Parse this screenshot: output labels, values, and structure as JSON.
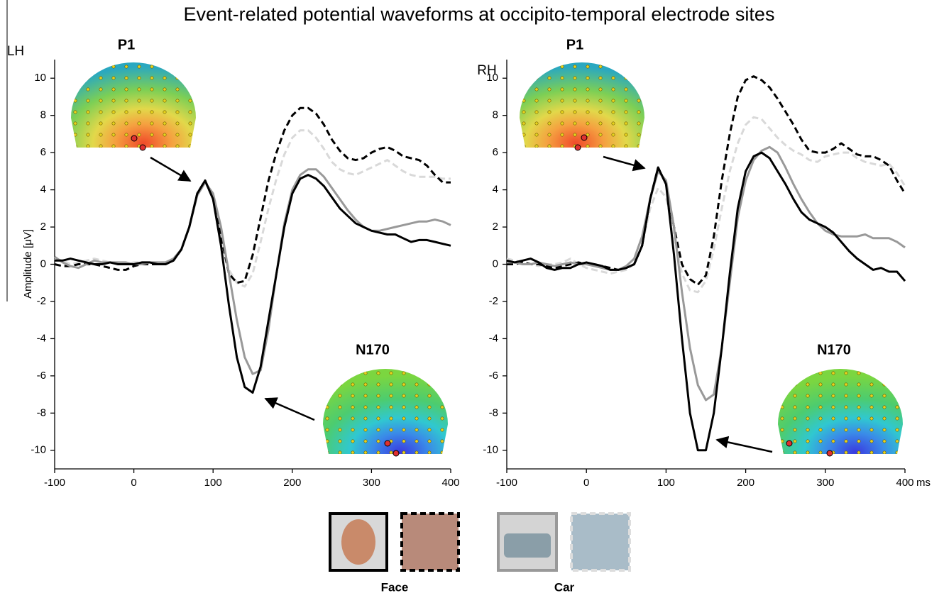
{
  "title": "Event-related potential waveforms at occipito-temporal electrode sites",
  "y_label": "Amplitude [μV]",
  "legend": [
    {
      "label": "Face"
    },
    {
      "label": "Car"
    }
  ],
  "chart_data": [
    {
      "type": "line",
      "panel_label": "LH",
      "annotations": [
        "P1",
        "N170"
      ],
      "x": [
        -100,
        -90,
        -80,
        -70,
        -60,
        -50,
        -40,
        -30,
        -20,
        -10,
        0,
        10,
        20,
        30,
        40,
        50,
        60,
        70,
        80,
        90,
        100,
        110,
        120,
        130,
        140,
        150,
        160,
        170,
        180,
        190,
        200,
        210,
        220,
        230,
        240,
        250,
        260,
        270,
        280,
        290,
        300,
        310,
        320,
        330,
        340,
        350,
        360,
        370,
        380,
        390,
        400
      ],
      "xlim": [
        -100,
        400
      ],
      "ylim": [
        -11,
        11
      ],
      "xticks": [
        -100,
        0,
        100,
        200,
        300,
        400
      ],
      "yticks": [
        -10,
        -8,
        -6,
        -4,
        -2,
        0,
        2,
        4,
        6,
        8,
        10
      ],
      "series": [
        {
          "color": "#000000",
          "dash": false,
          "values": [
            0.2,
            0.2,
            0.3,
            0.2,
            0.1,
            0,
            0,
            0.1,
            0,
            0,
            0,
            0.1,
            0.1,
            0,
            0,
            0.2,
            0.8,
            2,
            3.8,
            4.5,
            3.5,
            1,
            -2.2,
            -5,
            -6.6,
            -6.9,
            -5.5,
            -3,
            -0.5,
            2,
            3.8,
            4.6,
            4.8,
            4.6,
            4.2,
            3.6,
            3,
            2.6,
            2.2,
            2,
            1.8,
            1.7,
            1.6,
            1.6,
            1.4,
            1.2,
            1.3,
            1.3,
            1.2,
            1.1,
            1.0
          ]
        },
        {
          "color": "#999999",
          "dash": false,
          "values": [
            0.4,
            0.1,
            -0.1,
            -0.2,
            0,
            0.2,
            0.1,
            0.1,
            0.1,
            0.1,
            0,
            0,
            0.1,
            0.1,
            0.1,
            0.3,
            0.8,
            2,
            3.7,
            4.4,
            3.8,
            2,
            -0.5,
            -3,
            -5,
            -5.9,
            -5.7,
            -3.5,
            -0.5,
            2.2,
            4,
            4.8,
            5.1,
            5.1,
            4.7,
            4.1,
            3.5,
            2.9,
            2.4,
            2,
            1.8,
            1.8,
            1.9,
            2,
            2.1,
            2.2,
            2.3,
            2.3,
            2.4,
            2.3,
            2.1
          ]
        },
        {
          "color": "#000000",
          "dash": true,
          "values": [
            0,
            -0.1,
            -0.1,
            0,
            0,
            0,
            -0.1,
            -0.2,
            -0.3,
            -0.3,
            -0.1,
            0,
            0,
            0,
            0,
            0.2,
            0.8,
            2,
            3.8,
            4.5,
            3.5,
            1.5,
            -0.5,
            -1,
            -0.9,
            0.5,
            2.5,
            4.5,
            6,
            7.2,
            8,
            8.4,
            8.4,
            8.1,
            7.5,
            6.7,
            6.1,
            5.7,
            5.6,
            5.7,
            6,
            6.2,
            6.3,
            6.1,
            5.8,
            5.7,
            5.6,
            5.3,
            4.8,
            4.4,
            4.4
          ]
        },
        {
          "color": "#d9d9d9",
          "dash": true,
          "values": [
            0.3,
            0.2,
            0,
            0.1,
            0.2,
            0.3,
            0.2,
            0.1,
            0.1,
            0,
            0.1,
            0.1,
            0.1,
            0.1,
            0.1,
            0.3,
            0.8,
            2,
            3.7,
            4.4,
            3.6,
            1.6,
            -0.3,
            -1,
            -1.2,
            -0.5,
            1.2,
            3,
            4.6,
            5.9,
            6.8,
            7.2,
            7.2,
            6.8,
            6.2,
            5.5,
            5.1,
            4.9,
            4.8,
            5,
            5.2,
            5.4,
            5.6,
            5.3,
            5,
            4.8,
            4.7,
            4.7,
            4.7,
            4.6,
            4.6
          ]
        }
      ]
    },
    {
      "type": "line",
      "panel_label": "RH",
      "annotations": [
        "P1",
        "N170"
      ],
      "x_unit": "ms",
      "x": [
        -100,
        -90,
        -80,
        -70,
        -60,
        -50,
        -40,
        -30,
        -20,
        -10,
        0,
        10,
        20,
        30,
        40,
        50,
        60,
        70,
        80,
        90,
        100,
        110,
        120,
        130,
        140,
        150,
        160,
        170,
        180,
        190,
        200,
        210,
        220,
        230,
        240,
        250,
        260,
        270,
        280,
        290,
        300,
        310,
        320,
        330,
        340,
        350,
        360,
        370,
        380,
        390,
        400
      ],
      "xlim": [
        -100,
        400
      ],
      "ylim": [
        -11,
        11
      ],
      "xticks": [
        -100,
        0,
        100,
        200,
        300,
        400
      ],
      "yticks": [
        -10,
        -8,
        -6,
        -4,
        -2,
        0,
        2,
        4,
        6,
        8,
        10
      ],
      "series": [
        {
          "color": "#000000",
          "dash": false,
          "values": [
            0.2,
            0.1,
            0.2,
            0.3,
            0.1,
            -0.2,
            -0.3,
            -0.2,
            -0.2,
            0,
            0.1,
            0,
            -0.1,
            -0.3,
            -0.3,
            -0.2,
            0,
            1,
            3.5,
            5.2,
            4.3,
            0.5,
            -4,
            -8,
            -10,
            -10,
            -8,
            -4.5,
            -0.5,
            3,
            5,
            5.8,
            6,
            5.7,
            5,
            4.3,
            3.5,
            2.8,
            2.4,
            2.2,
            2,
            1.7,
            1.2,
            0.7,
            0.3,
            0,
            -0.3,
            -0.2,
            -0.4,
            -0.4,
            -0.9
          ]
        },
        {
          "color": "#999999",
          "dash": false,
          "values": [
            0.1,
            0.1,
            0,
            0,
            0.1,
            0,
            -0.1,
            0,
            0.1,
            0,
            0,
            -0.1,
            -0.2,
            -0.3,
            -0.3,
            -0.1,
            0.3,
            1.5,
            3.5,
            5,
            4.5,
            2,
            -1.5,
            -4.5,
            -6.5,
            -7.3,
            -7,
            -4.5,
            -1,
            2.5,
            4.5,
            5.6,
            6.1,
            6.3,
            6,
            5.2,
            4.3,
            3.5,
            2.8,
            2.2,
            1.8,
            1.6,
            1.5,
            1.5,
            1.5,
            1.6,
            1.4,
            1.4,
            1.4,
            1.2,
            0.9
          ]
        },
        {
          "color": "#000000",
          "dash": true,
          "values": [
            0,
            0,
            0.1,
            0,
            0,
            -0.1,
            -0.2,
            -0.1,
            0,
            0.1,
            0,
            0,
            -0.1,
            -0.2,
            -0.3,
            -0.2,
            0,
            1,
            3.5,
            5.2,
            4.3,
            2,
            0,
            -0.8,
            -1.1,
            -0.6,
            1.5,
            4.5,
            7,
            9,
            9.9,
            10.1,
            9.9,
            9.5,
            8.9,
            8.2,
            7.5,
            6.7,
            6.1,
            6,
            6,
            6.2,
            6.5,
            6.2,
            5.9,
            5.8,
            5.8,
            5.6,
            5.3,
            4.5,
            3.8
          ]
        },
        {
          "color": "#d9d9d9",
          "dash": true,
          "values": [
            0.3,
            0.2,
            0.1,
            0,
            -0.1,
            0,
            0,
            0.1,
            0.3,
            0,
            -0.2,
            -0.3,
            -0.4,
            -0.5,
            -0.4,
            -0.3,
            0,
            1,
            3,
            4.1,
            3.6,
            1.5,
            -0.5,
            -1.4,
            -1.5,
            -0.9,
            0.8,
            3,
            5,
            6.5,
            7.5,
            7.9,
            7.8,
            7.3,
            6.8,
            6.4,
            6.1,
            5.9,
            5.6,
            5.5,
            5.8,
            5.9,
            6,
            6,
            5.7,
            5.5,
            5.4,
            5.3,
            5.4,
            4.9,
            4.2
          ]
        }
      ]
    }
  ]
}
